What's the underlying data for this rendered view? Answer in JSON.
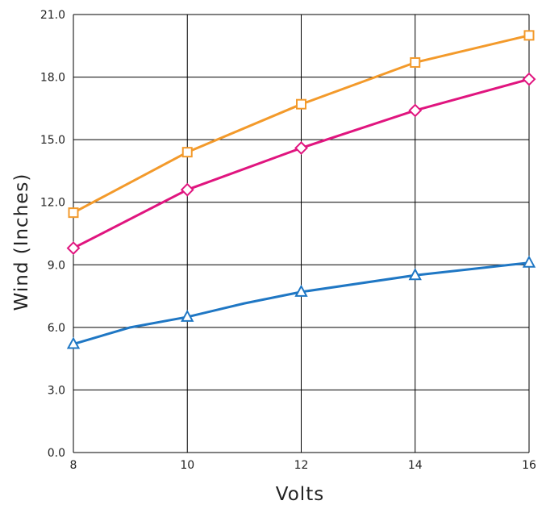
{
  "chart_data": {
    "type": "line",
    "title": "",
    "xlabel": "Volts",
    "ylabel": "Wind (Inches)",
    "xlim": [
      8,
      16
    ],
    "ylim": [
      0,
      21
    ],
    "x_ticks": [
      8,
      10,
      12,
      14,
      16
    ],
    "x_tick_labels": [
      "8",
      "10",
      "12",
      "14",
      "16"
    ],
    "y_ticks": [
      0,
      3,
      6,
      9,
      12,
      15,
      18,
      21
    ],
    "y_tick_labels": [
      "0.0",
      "3.0",
      "6.0",
      "9.0",
      "12.0",
      "15.0",
      "18.0",
      "21.0"
    ],
    "grid": true,
    "legend": "none",
    "series": [
      {
        "color": "#f39a2b",
        "marker": "square",
        "x": [
          8,
          10,
          12,
          14,
          16
        ],
        "y": [
          11.5,
          14.4,
          16.7,
          18.7,
          20.0
        ]
      },
      {
        "color": "#e0157f",
        "marker": "diamond",
        "x": [
          8,
          10,
          12,
          14,
          16
        ],
        "y": [
          9.8,
          12.6,
          14.6,
          16.4,
          17.9
        ]
      },
      {
        "color": "#1f77c4",
        "marker": "triangle",
        "x": [
          8,
          9,
          10,
          11,
          12,
          14,
          16
        ],
        "y": [
          5.2,
          6.0,
          6.5,
          7.15,
          7.7,
          8.5,
          9.1
        ]
      }
    ]
  }
}
